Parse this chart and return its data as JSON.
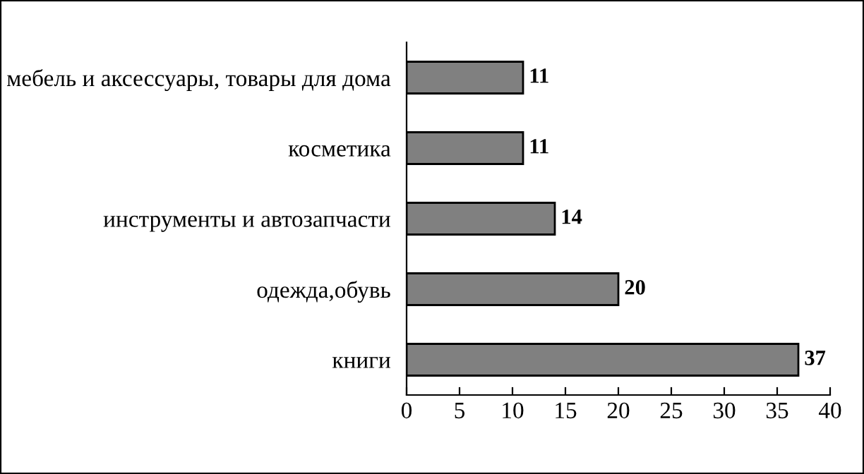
{
  "chart_data": {
    "type": "bar",
    "orientation": "horizontal",
    "categories": [
      "мебель и аксессуары, товары для дома",
      "косметика",
      "инструменты и автозапчасти",
      "одежда,обувь",
      "книги"
    ],
    "values": [
      11,
      11,
      14,
      20,
      37
    ],
    "color": "#808080",
    "xlim": [
      0,
      40
    ],
    "xticks": [
      0,
      5,
      10,
      15,
      20,
      25,
      30,
      35,
      40
    ],
    "grid": false,
    "data_labels": true,
    "legend": false
  }
}
